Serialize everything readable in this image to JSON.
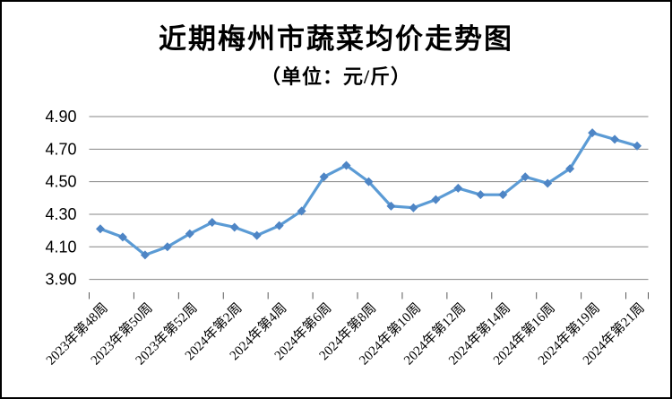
{
  "chart_data": {
    "type": "line",
    "title": "近期梅州市蔬菜均价走势图",
    "subtitle": "（单位：元/斤）",
    "unit_label": "元/斤",
    "x_tick_labels": [
      "2023年第48周",
      "2023年第50周",
      "2023年第52周",
      "2024年第2周",
      "2024年第4周",
      "2024年第6周",
      "2024年第8周",
      "2024年第10周",
      "2024年第12周",
      "2024年第14周",
      "2024年第16周",
      "2024年第19周",
      "2024年第21周"
    ],
    "x_label_interval": 2,
    "n_points": 25,
    "values": [
      4.21,
      4.16,
      4.05,
      4.1,
      4.18,
      4.25,
      4.22,
      4.17,
      4.23,
      4.32,
      4.53,
      4.6,
      4.5,
      4.35,
      4.34,
      4.39,
      4.46,
      4.42,
      4.42,
      4.53,
      4.49,
      4.58,
      4.8,
      4.76,
      4.72
    ],
    "y_ticks": [
      4.9,
      4.7,
      4.5,
      4.3,
      4.1,
      3.9
    ],
    "ylim": [
      3.9,
      4.9
    ],
    "grid": true,
    "legend": "none",
    "line_color": "#5B9BD5",
    "marker": "diamond",
    "marker_color": "#4E85C5",
    "gridline_color": "#848484",
    "tick_color": "#595959",
    "text_color": "#000000"
  }
}
